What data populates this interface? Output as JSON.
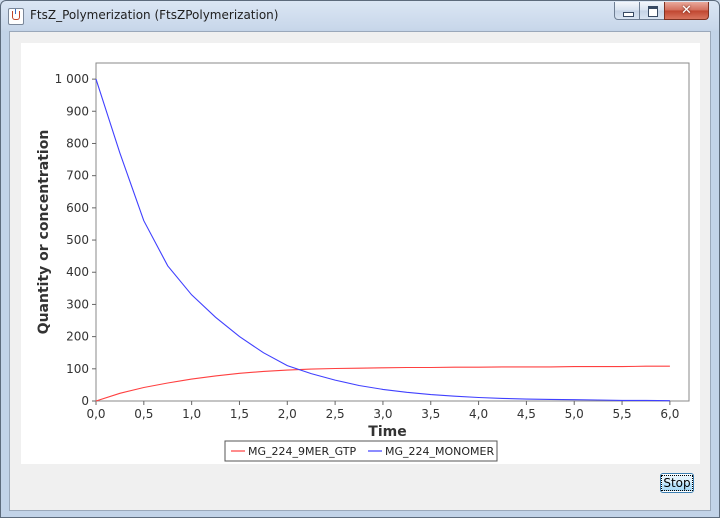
{
  "window": {
    "title": "FtsZ_Polymerization (FtsZPolymerization)",
    "minimize_label": "",
    "close_glyph": "✕"
  },
  "chart_data": {
    "type": "line",
    "title": "",
    "xlabel": "Time",
    "ylabel": "Quantity or concentration",
    "xlim": [
      0,
      6.2
    ],
    "ylim": [
      0,
      1050
    ],
    "x_ticks": [
      0.0,
      0.5,
      1.0,
      1.5,
      2.0,
      2.5,
      3.0,
      3.5,
      4.0,
      4.5,
      5.0,
      5.5,
      6.0
    ],
    "x_tick_labels": [
      "0,0",
      "0,5",
      "1,0",
      "1,5",
      "2,0",
      "2,5",
      "3,0",
      "3,5",
      "4,0",
      "4,5",
      "5,0",
      "5,5",
      "6,0"
    ],
    "y_ticks": [
      0,
      100,
      200,
      300,
      400,
      500,
      600,
      700,
      800,
      900,
      1000
    ],
    "y_tick_labels": [
      "0",
      "100",
      "200",
      "300",
      "400",
      "500",
      "600",
      "700",
      "800",
      "900",
      "1 000"
    ],
    "grid": false,
    "legend_placement": "bottom-center",
    "x": [
      0.0,
      0.25,
      0.5,
      0.75,
      1.0,
      1.25,
      1.5,
      1.75,
      2.0,
      2.25,
      2.5,
      2.75,
      3.0,
      3.25,
      3.5,
      3.75,
      4.0,
      4.25,
      4.5,
      4.75,
      5.0,
      5.25,
      5.5,
      5.75,
      6.0
    ],
    "series": [
      {
        "name": "MG_224_9MER_GTP",
        "color": "#ff4040",
        "values": [
          0,
          24,
          42,
          56,
          68,
          78,
          86,
          92,
          96,
          99,
          101,
          102,
          103,
          104,
          104,
          105,
          105,
          106,
          106,
          106,
          107,
          107,
          107,
          108,
          108
        ]
      },
      {
        "name": "MG_224_MONOMER",
        "color": "#4040ff",
        "values": [
          1000,
          770,
          560,
          420,
          330,
          260,
          200,
          150,
          110,
          85,
          65,
          48,
          36,
          27,
          20,
          15,
          11,
          8,
          6,
          5,
          4,
          3,
          2,
          2,
          1
        ]
      }
    ]
  },
  "toolbar": {
    "stop_label": "Stop"
  }
}
